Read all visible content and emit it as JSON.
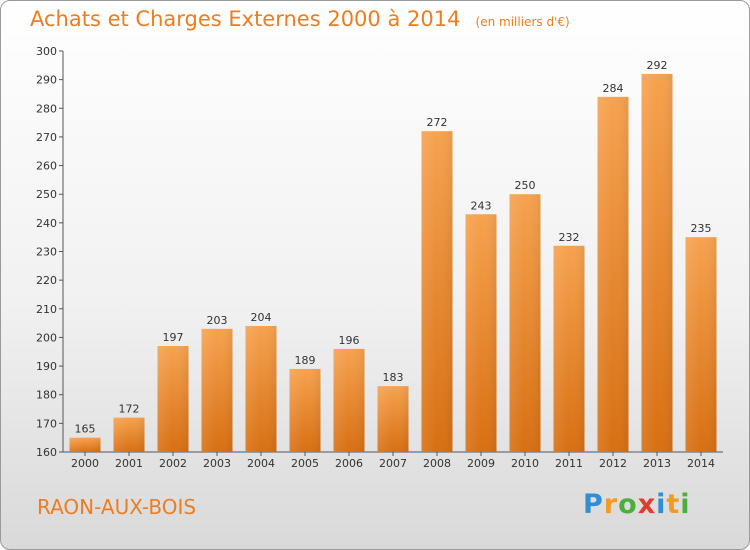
{
  "header": {
    "title": "Achats et Charges Externes 2000 à 2014",
    "subtitle": "(en milliers d'€)"
  },
  "footer": {
    "town": "RAON-AUX-BOIS",
    "logo": {
      "letters": [
        "P",
        "r",
        "o",
        "x",
        "i",
        "t",
        "i"
      ],
      "colors": [
        "#2e8fd8",
        "#f29b1f",
        "#4caf3c",
        "#e23b2e",
        "#2e8fd8",
        "#f29b1f",
        "#4caf3c"
      ]
    }
  },
  "chart_data": {
    "type": "bar",
    "title": "Achats et Charges Externes 2000 à 2014",
    "subtitle": "(en milliers d'€)",
    "xlabel": "",
    "ylabel": "",
    "categories": [
      "2000",
      "2001",
      "2002",
      "2003",
      "2004",
      "2005",
      "2006",
      "2007",
      "2008",
      "2009",
      "2010",
      "2011",
      "2012",
      "2013",
      "2014"
    ],
    "values": [
      165,
      172,
      197,
      203,
      204,
      189,
      196,
      183,
      272,
      243,
      250,
      232,
      284,
      292,
      235
    ],
    "ylim": [
      160,
      300
    ],
    "yticks": [
      160,
      170,
      180,
      190,
      200,
      210,
      220,
      230,
      240,
      250,
      260,
      270,
      280,
      290,
      300
    ],
    "grid": false,
    "bar_color": "#ee8c2e",
    "text_color": "#ee7d21"
  }
}
